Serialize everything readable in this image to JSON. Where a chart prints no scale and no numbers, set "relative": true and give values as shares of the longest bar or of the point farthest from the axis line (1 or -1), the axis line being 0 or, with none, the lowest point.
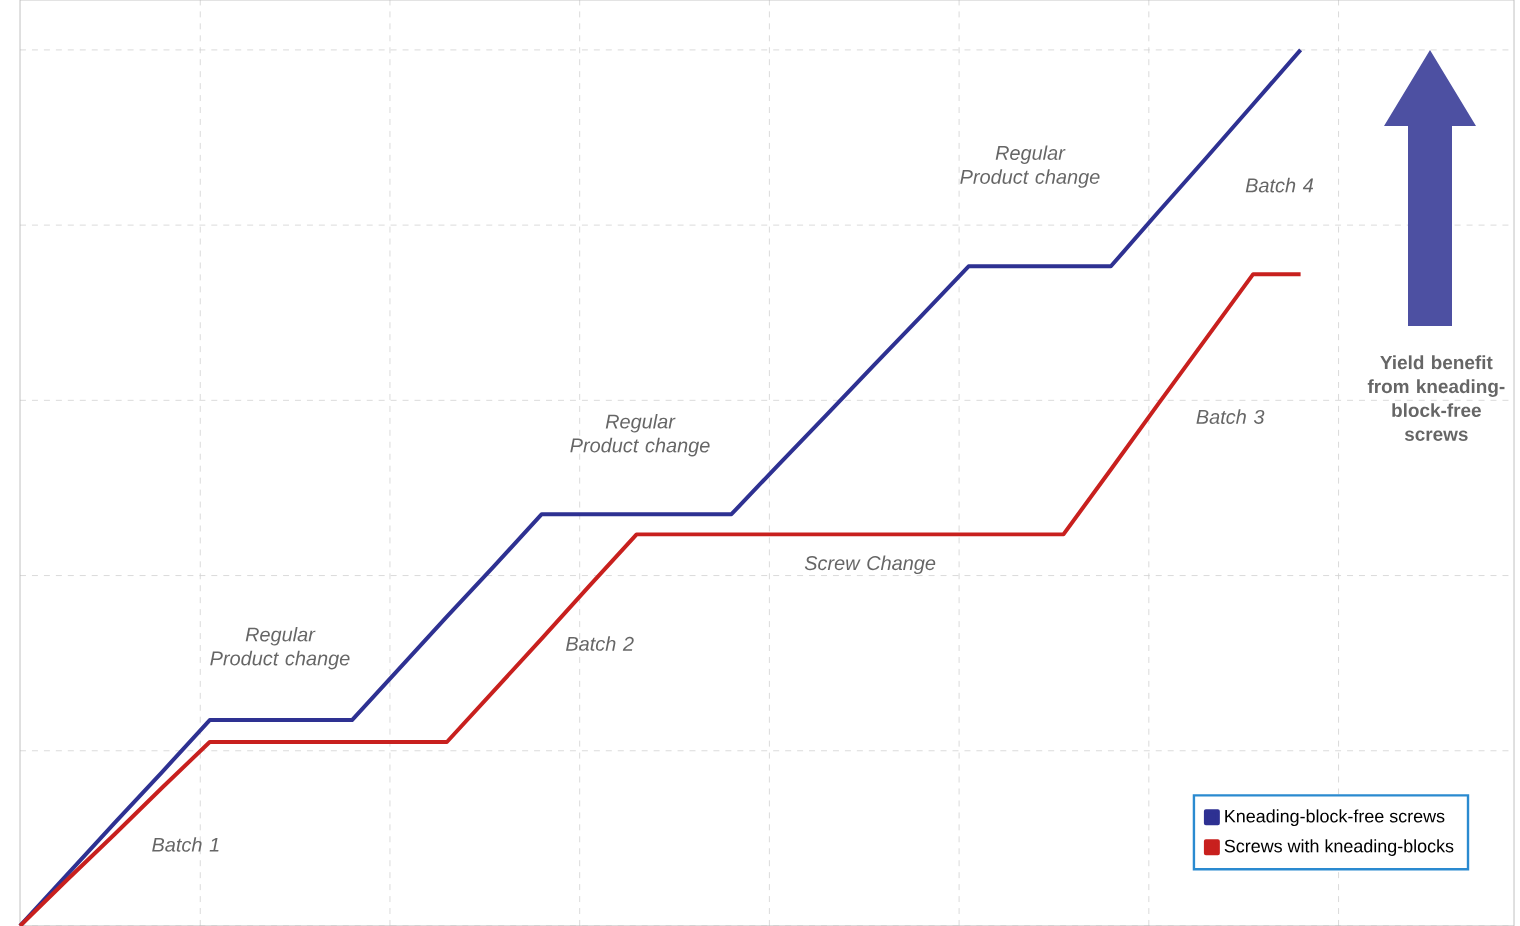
{
  "chart_data": {
    "type": "line",
    "relative": true,
    "categories": [
      null,
      null,
      null,
      null,
      null,
      null,
      null,
      null,
      null,
      null,
      null,
      null,
      null,
      null,
      null,
      null,
      null,
      null,
      null,
      null,
      null,
      null,
      null,
      null,
      null,
      null,
      null,
      null,
      null,
      null,
      null,
      null
    ],
    "grid": true,
    "legend": "bottom right",
    "marker": "none",
    "line_style": "solid",
    "series": [
      {
        "name": "Kneading-block-free screws",
        "color": "#2e3192",
        "values": [
          0,
          0.059,
          0.118,
          0.176,
          0.235,
          0.235,
          0.235,
          0.235,
          0.294,
          0.353,
          0.411,
          0.47,
          0.47,
          0.47,
          0.47,
          0.47,
          0.527,
          0.583,
          0.64,
          0.696,
          0.753,
          0.753,
          0.753,
          0.753,
          0.815,
          0.876,
          0.938,
          1,
          null,
          null,
          null,
          null
        ]
      },
      {
        "name": "Screws with kneading-blocks",
        "color": "#c8201e",
        "values": [
          0,
          0.053,
          0.105,
          0.158,
          0.21,
          0.21,
          0.21,
          0.21,
          0.21,
          0.21,
          0.269,
          0.328,
          0.388,
          0.447,
          0.447,
          0.447,
          0.447,
          0.447,
          0.447,
          0.447,
          0.447,
          0.447,
          0.447,
          0.521,
          0.596,
          0.67,
          0.744,
          0.744,
          null,
          null,
          null,
          null
        ]
      }
    ],
    "annotations": [
      "Regular Product change",
      "Regular Product change",
      "Regular Product change",
      "Batch 1",
      "Batch 2",
      "Batch 3",
      "Batch 4",
      "Screw Change",
      "Yield benefit from kneading-block-free screws"
    ]
  }
}
